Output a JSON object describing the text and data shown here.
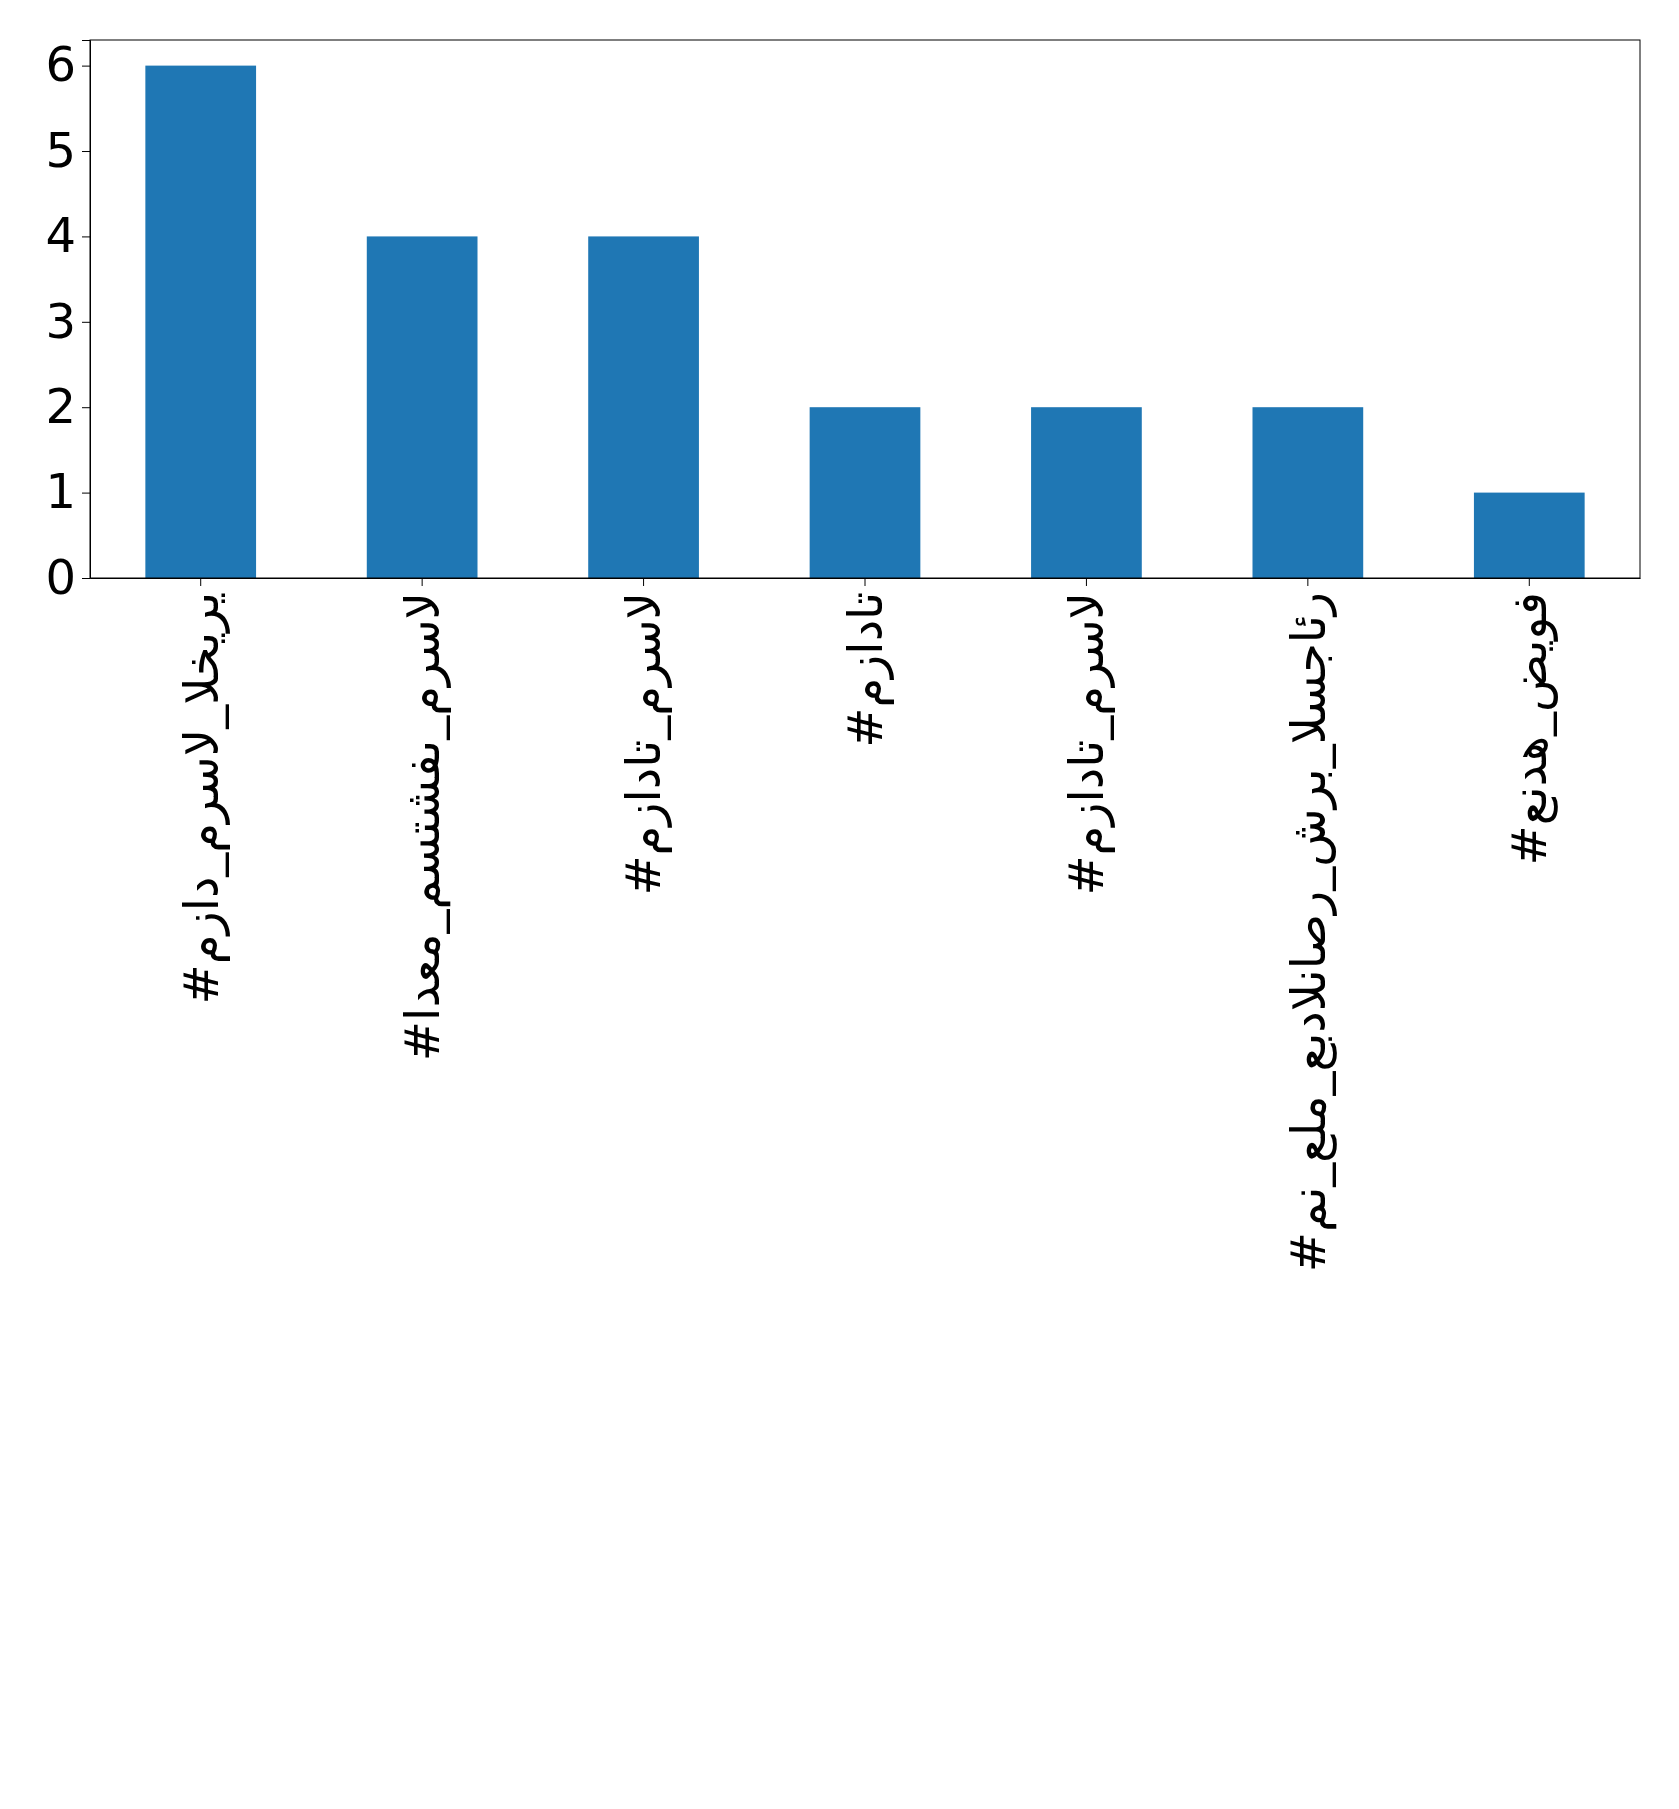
{
  "chart_data": {
    "type": "bar",
    "categories": [
      "#مزاد_مرسال_الخيري",
      "#ادعم_مستشفى_مرسال",
      "#مزادات_مرسال",
      "#مزادات",
      "#مزادات_مرسال",
      "#من_علم_عبدالناصر_شرب_السجائر",
      "#عنده_ضيوف"
    ],
    "values": [
      6,
      4,
      4,
      2,
      2,
      2,
      1
    ],
    "color": "#1f77b4",
    "ylim": [
      0,
      6.3
    ],
    "yticks": [
      0,
      1,
      2,
      3,
      4,
      5,
      6
    ],
    "grid": false
  }
}
